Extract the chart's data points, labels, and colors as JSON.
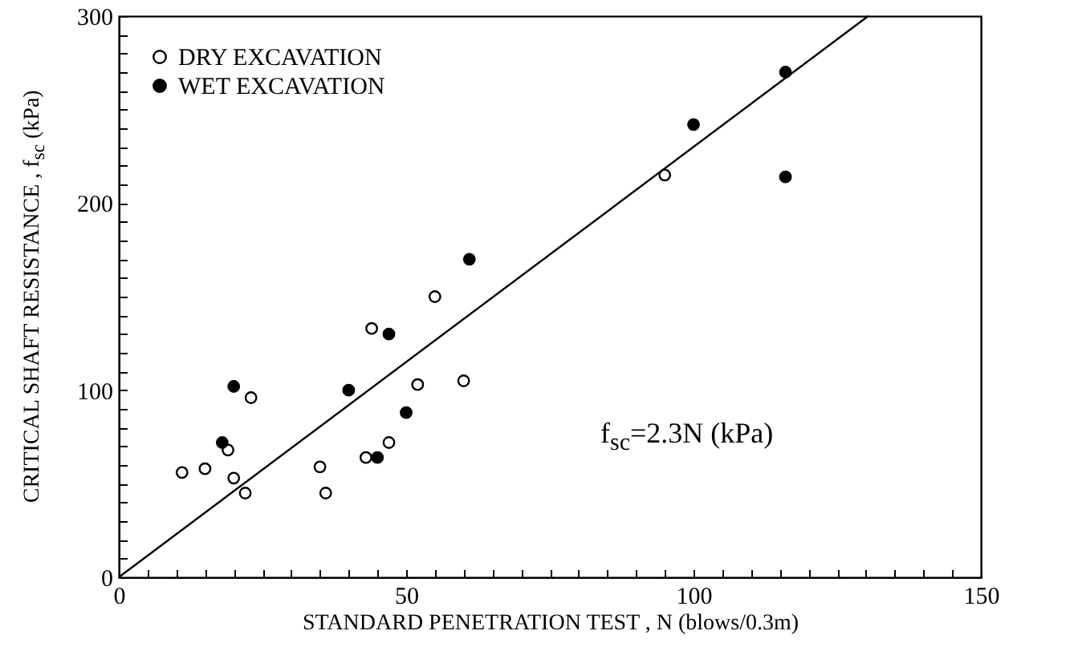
{
  "chart_data": {
    "type": "scatter",
    "xlabel": "STANDARD PENETRATION TEST , N (blows/0.3m)",
    "ylabel": "CRITICAL SHAFT RESISTANCE , f$_{sc}$ (kPa)",
    "annotations": [
      "f$_{sc}$=2.3N   (kPa)"
    ],
    "xlim": [
      0,
      150
    ],
    "ylim": [
      0,
      300
    ],
    "xticks": [
      0,
      {
        "value": 5,
        "label": null
      },
      {
        "value": 10,
        "label": null
      },
      {
        "value": 15,
        "label": null
      },
      {
        "value": 20,
        "label": null
      },
      {
        "value": 25,
        "label": null
      },
      {
        "value": 30,
        "label": null
      },
      {
        "value": 35,
        "label": null
      },
      {
        "value": 40,
        "label": null
      },
      {
        "value": 45,
        "label": null
      },
      50,
      {
        "value": 55,
        "label": null
      },
      {
        "value": 60,
        "label": null
      },
      {
        "value": 65,
        "label": null
      },
      {
        "value": 70,
        "label": null
      },
      {
        "value": 75,
        "label": null
      },
      {
        "value": 80,
        "label": null
      },
      {
        "value": 85,
        "label": null
      },
      {
        "value": 90,
        "label": null
      },
      {
        "value": 95,
        "label": null
      },
      100,
      {
        "value": 105,
        "label": null
      },
      {
        "value": 110,
        "label": null
      },
      {
        "value": 115,
        "label": null
      },
      {
        "value": 120,
        "label": null
      },
      {
        "value": 125,
        "label": null
      },
      {
        "value": 130,
        "label": null
      },
      {
        "value": 135,
        "label": null
      },
      {
        "value": 140,
        "label": null
      },
      {
        "value": 145,
        "label": null
      },
      150
    ],
    "yticks": [
      0,
      {
        "value": 10,
        "label": null
      },
      {
        "value": 20,
        "label": null
      },
      {
        "value": 30,
        "label": null
      },
      {
        "value": 40,
        "label": null
      },
      {
        "value": 50,
        "label": null
      },
      {
        "value": 60,
        "label": null
      },
      {
        "value": 70,
        "label": null
      },
      {
        "value": 80,
        "label": null
      },
      {
        "value": 90,
        "label": null
      },
      100,
      {
        "value": 110,
        "label": null
      },
      {
        "value": 120,
        "label": null
      },
      {
        "value": 130,
        "label": null
      },
      {
        "value": 140,
        "label": null
      },
      {
        "value": 150,
        "label": null
      },
      {
        "value": 160,
        "label": null
      },
      {
        "value": 170,
        "label": null
      },
      {
        "value": 180,
        "label": null
      },
      {
        "value": 190,
        "label": null
      },
      200,
      {
        "value": 210,
        "label": null
      },
      {
        "value": 220,
        "label": null
      },
      {
        "value": 230,
        "label": null
      },
      {
        "value": 240,
        "label": null
      },
      {
        "value": 250,
        "label": null
      },
      {
        "value": 260,
        "label": null
      },
      {
        "value": 270,
        "label": null
      },
      {
        "value": 280,
        "label": null
      },
      {
        "value": 290,
        "label": null
      },
      300
    ],
    "grid": false,
    "legend": "top left",
    "marker": "circle",
    "series": [
      {
        "name": "DRY EXCAVATION",
        "color": "#000000",
        "x": [
          11,
          15,
          19,
          20,
          22,
          23,
          35,
          36,
          43,
          44,
          47,
          52,
          55,
          60,
          95
        ],
        "values": [
          56,
          58,
          68,
          53,
          45,
          96,
          59,
          45,
          64,
          133,
          72,
          103,
          150,
          105,
          215
        ]
      },
      {
        "name": "WET EXCAVATION",
        "color": "#000000",
        "x": [
          18,
          20,
          40,
          45,
          47,
          50,
          61,
          100,
          116,
          116
        ],
        "values": [
          72,
          102,
          100,
          64,
          130,
          88,
          170,
          242,
          270,
          214
        ]
      },
      {
        "type": "line",
        "color": "#000000",
        "marker": "none",
        "x": [
          0,
          130.4
        ],
        "values": [
          0,
          300
        ]
      }
    ]
  }
}
